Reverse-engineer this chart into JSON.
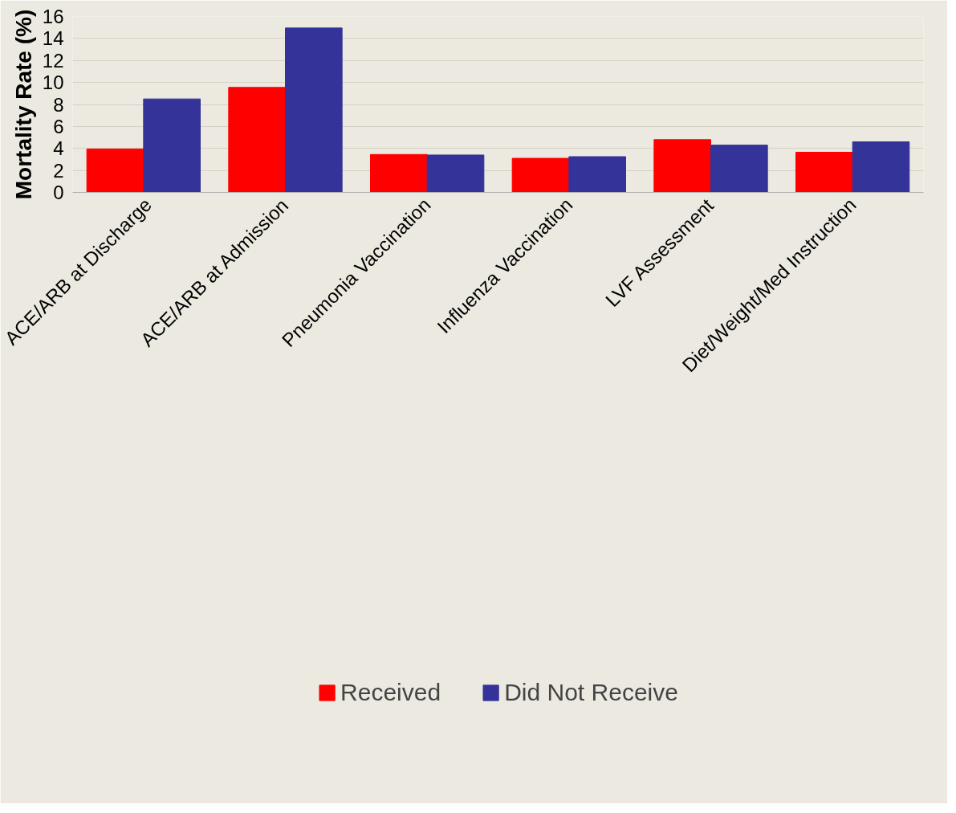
{
  "chart_data": {
    "type": "bar",
    "ylabel": "Mortality Rate (%)",
    "categories": [
      "ACE/ARB at Discharge",
      "ACE/ARB at Admission",
      "Pneumonia Vaccination",
      "Influenza Vaccination",
      "LVF Assessment",
      "Diet/Weight/Med Instruction"
    ],
    "series": [
      {
        "name": "Received",
        "color": "#ff0000",
        "values": [
          3.95,
          9.55,
          3.45,
          3.1,
          4.8,
          3.65
        ]
      },
      {
        "name": "Did Not Receive",
        "color": "#333399",
        "values": [
          8.5,
          14.95,
          3.4,
          3.25,
          4.3,
          4.6
        ]
      }
    ],
    "ylim": [
      0,
      16
    ],
    "yticks": [
      0,
      2,
      4,
      6,
      8,
      10,
      12,
      14,
      16
    ],
    "grid": "y",
    "legend": "bottom"
  }
}
